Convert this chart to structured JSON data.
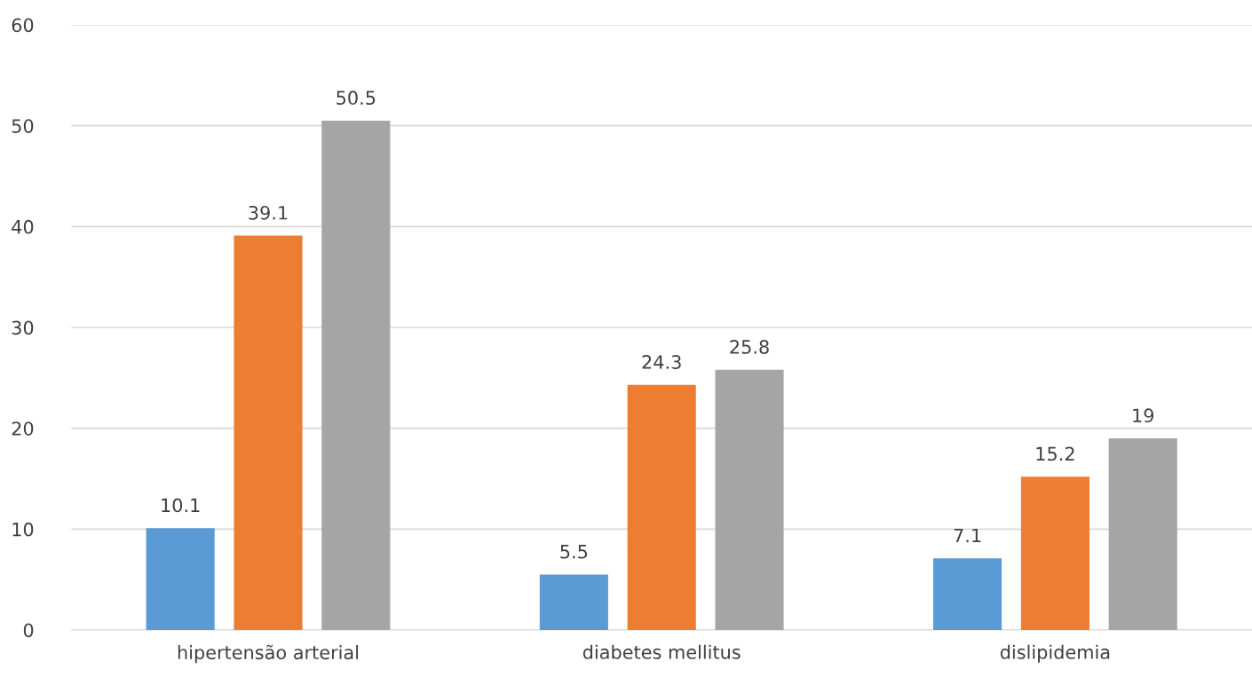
{
  "chart_data": {
    "type": "bar",
    "categories": [
      "hipertensão arterial",
      "diabetes mellitus",
      "dislipidemia"
    ],
    "series": [
      {
        "color": "#5b9bd5",
        "values": [
          10.1,
          5.5,
          7.1
        ]
      },
      {
        "color": "#ed7d31",
        "values": [
          39.1,
          24.3,
          15.2
        ]
      },
      {
        "color": "#a5a5a5",
        "values": [
          50.5,
          25.8,
          19
        ]
      }
    ],
    "ylim": [
      0,
      60
    ],
    "yticks": [
      0,
      10,
      20,
      30,
      40,
      50,
      60
    ],
    "grid": "y",
    "data_labels": true
  }
}
